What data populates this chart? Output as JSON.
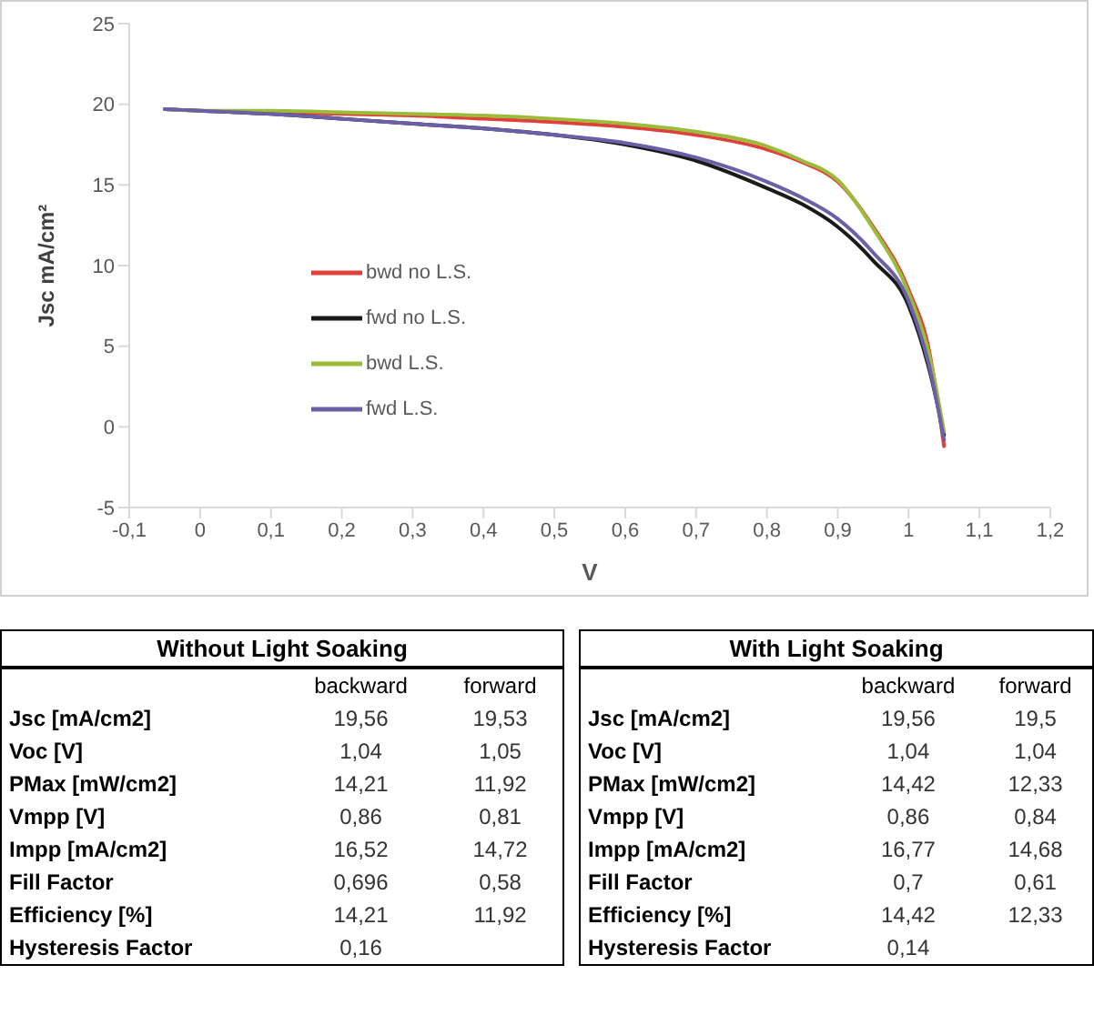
{
  "chart_data": [
    {
      "type": "line",
      "xlabel": "V",
      "ylabel": "Jsc mA/cm²",
      "xlim": [
        -0.1,
        1.2
      ],
      "ylim": [
        -5,
        25
      ],
      "xticks": [
        {
          "value": -0.1,
          "label": "-0,1"
        },
        0,
        {
          "value": 0.1,
          "label": "0,1"
        },
        {
          "value": 0.2,
          "label": "0,2"
        },
        {
          "value": 0.3,
          "label": "0,3"
        },
        {
          "value": 0.4,
          "label": "0,4"
        },
        {
          "value": 0.5,
          "label": "0,5"
        },
        {
          "value": 0.6,
          "label": "0,6"
        },
        {
          "value": 0.7,
          "label": "0,7"
        },
        {
          "value": 0.8,
          "label": "0,8"
        },
        {
          "value": 0.9,
          "label": "0,9"
        },
        1,
        {
          "value": 1.1,
          "label": "1,1"
        },
        {
          "value": 1.2,
          "label": "1,2"
        }
      ],
      "yticks": [
        -5,
        0,
        5,
        10,
        15,
        20,
        25
      ],
      "grid": false,
      "legend": "left",
      "marker": "none",
      "line_style": "solid",
      "x": [
        -0.05,
        0,
        0.1,
        0.2,
        0.3,
        0.4,
        0.5,
        0.6,
        0.7,
        0.8,
        0.85,
        0.9,
        0.95,
        1.0,
        1.03,
        1.05
      ],
      "series": [
        {
          "name": "bwd no L.S.",
          "color": "#e0403a",
          "values": [
            null,
            null,
            19.5,
            19.4,
            19.3,
            19.1,
            18.9,
            18.6,
            18.1,
            17.2,
            16.4,
            15.2,
            12.4,
            8.5,
            4.5,
            -1.2
          ]
        },
        {
          "name": "fwd no L.S.",
          "color": "#1a1a1a",
          "values": [
            19.7,
            19.6,
            19.4,
            19.1,
            18.8,
            18.5,
            18.1,
            17.5,
            16.5,
            14.8,
            13.8,
            12.4,
            10.3,
            7.5,
            3.4,
            -0.5
          ]
        },
        {
          "name": "bwd L.S.",
          "color": "#9bbb3b",
          "values": [
            19.7,
            19.6,
            19.6,
            19.5,
            19.4,
            19.3,
            19.1,
            18.8,
            18.3,
            17.4,
            16.5,
            15.3,
            12.3,
            8.3,
            4.3,
            -0.3
          ]
        },
        {
          "name": "fwd L.S.",
          "color": "#6b5fa8",
          "values": [
            19.7,
            19.6,
            19.4,
            19.1,
            18.8,
            18.5,
            18.1,
            17.6,
            16.7,
            15.2,
            14.2,
            12.9,
            10.8,
            7.8,
            3.6,
            -0.8
          ]
        }
      ]
    },
    {
      "type": "other",
      "title": "Without Light Soaking",
      "categories": [
        "Jsc [mA/cm2]",
        "Voc [V]",
        "PMax [mW/cm2]",
        "Vmpp [V]",
        "Impp [mA/cm2]",
        "Fill Factor",
        "Efficiency [%]",
        "Hysteresis Factor"
      ],
      "series": [
        {
          "name": "backward",
          "values": [
            19.56,
            1.04,
            14.21,
            0.86,
            16.52,
            0.696,
            14.21,
            0.16
          ],
          "value_labels": [
            "19,56",
            "1,04",
            "14,21",
            "0,86",
            "16,52",
            "0,696",
            "14,21",
            "0,16"
          ]
        },
        {
          "name": "forward",
          "values": [
            19.53,
            1.05,
            11.92,
            0.81,
            14.72,
            0.58,
            11.92,
            null
          ],
          "value_labels": [
            "19,53",
            "1,05",
            "11,92",
            "0,81",
            "14,72",
            "0,58",
            "11,92",
            null
          ]
        }
      ]
    },
    {
      "type": "other",
      "title": "With Light Soaking",
      "categories": [
        "Jsc [mA/cm2]",
        "Voc [V]",
        "PMax [mW/cm2]",
        "Vmpp [V]",
        "Impp [mA/cm2]",
        "Fill Factor",
        "Efficiency [%]",
        "Hysteresis Factor"
      ],
      "series": [
        {
          "name": "backward",
          "values": [
            19.56,
            1.04,
            14.42,
            0.86,
            16.77,
            0.7,
            14.42,
            0.14
          ],
          "value_labels": [
            "19,56",
            "1,04",
            "14,42",
            "0,86",
            "16,77",
            "0,7",
            "14,42",
            "0,14"
          ]
        },
        {
          "name": "forward",
          "values": [
            19.5,
            1.04,
            12.33,
            0.84,
            14.68,
            0.61,
            12.33,
            null
          ],
          "value_labels": [
            "19,5",
            "1,04",
            "12,33",
            "0,84",
            "14,68",
            "0,61",
            "12,33",
            null
          ]
        }
      ]
    }
  ]
}
